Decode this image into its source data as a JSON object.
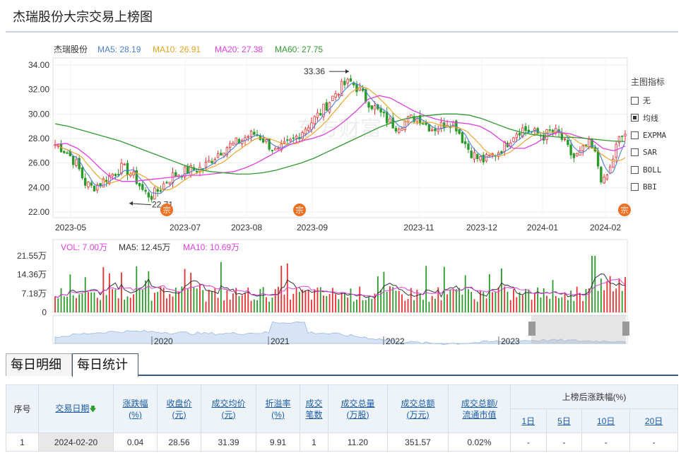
{
  "page": {
    "title": "杰瑞股份大宗交易上榜图"
  },
  "legend": {
    "stock_name": "杰瑞股份",
    "ma5": "MA5: 28.19",
    "ma10": "MA10: 26.91",
    "ma20": "MA20: 27.38",
    "ma60": "MA60: 27.75"
  },
  "volume_legend": {
    "vol": "VOL: 7.00万",
    "ma5": "MA5: 12.45万",
    "ma10": "MA10: 10.69万"
  },
  "colors": {
    "up": "#e83030",
    "down": "#2a9a2a",
    "ma5": "#4b7fd6",
    "ma10": "#e8a020",
    "ma20": "#e040e0",
    "ma60": "#2f9a2f",
    "vol_ma5": "#333333",
    "vol_ma10": "#e040e0",
    "marker": "#f07020"
  },
  "indicator_panel": {
    "title": "主图指标",
    "items": [
      {
        "label": "无",
        "checked": false
      },
      {
        "label": "均线",
        "checked": true
      },
      {
        "label": "EXPMA",
        "checked": false
      },
      {
        "label": "SAR",
        "checked": false
      },
      {
        "label": "BOLL",
        "checked": false
      },
      {
        "label": "BBI",
        "checked": false
      }
    ]
  },
  "chart_data": [
    {
      "type": "candlestick",
      "ylim": [
        22,
        34
      ],
      "y_ticks": [
        "34.00",
        "32.00",
        "30.00",
        "28.00",
        "26.00",
        "24.00",
        "22.00"
      ],
      "x_ticks": [
        "2023-05",
        "2023-07",
        "2023-08",
        "2023-09",
        "2023-11",
        "2023-12",
        "2024-01",
        "2024-02"
      ],
      "annotations": {
        "high": "33.36",
        "low": "22.71"
      },
      "block_trade_marker": "宗",
      "close_path": [
        27.5,
        27.2,
        26.6,
        25.8,
        24.4,
        24.0,
        24.3,
        24.8,
        25.2,
        25.6,
        25.3,
        24.6,
        23.6,
        23.3,
        23.8,
        24.5,
        25.0,
        25.2,
        25.4,
        25.5,
        25.6,
        26.2,
        26.8,
        27.3,
        27.5,
        27.8,
        28.2,
        28.4,
        28.0,
        27.4,
        26.8,
        27.4,
        27.8,
        28.4,
        29.0,
        29.6,
        30.2,
        31.0,
        31.8,
        32.4,
        32.6,
        32.0,
        31.2,
        30.6,
        30.0,
        29.4,
        29.0,
        29.3,
        29.6,
        29.8,
        29.2,
        28.8,
        29.0,
        29.4,
        29.2,
        28.0,
        27.0,
        26.4,
        26.2,
        26.6,
        27.0,
        27.6,
        28.4,
        28.8,
        28.6,
        28.4,
        28.2,
        28.6,
        28.4,
        27.4,
        26.4,
        26.8,
        27.6,
        26.6,
        24.2,
        25.6,
        27.8,
        28.4
      ],
      "ma60_path": [
        29.2,
        29.0,
        28.7,
        28.4,
        28.1,
        27.8,
        27.4,
        27.0,
        26.6,
        26.2,
        25.8,
        25.5,
        25.3,
        25.2,
        25.1,
        25.1,
        25.2,
        25.4,
        25.7,
        26.0,
        26.4,
        26.9,
        27.4,
        27.9,
        28.4,
        28.9,
        29.3,
        29.6,
        29.8,
        29.9,
        30.0,
        30.0,
        29.9,
        29.6,
        29.2,
        28.8,
        28.5,
        28.3,
        28.2,
        28.1,
        28.1,
        28.0,
        27.9,
        27.8,
        27.75
      ],
      "ma20_path": [
        27.5,
        27.6,
        27.2,
        26.5,
        25.6,
        24.8,
        24.5,
        24.5,
        24.6,
        24.7,
        24.8,
        24.9,
        25.0,
        25.0,
        25.1,
        25.2,
        25.3,
        25.6,
        26.0,
        26.5,
        27.0,
        27.5,
        27.8,
        28.0,
        28.3,
        28.8,
        29.5,
        30.3,
        31.2,
        31.5,
        31.3,
        30.8,
        30.3,
        29.9,
        29.6,
        29.4,
        29.3,
        29.2,
        29.0,
        28.5,
        27.8,
        27.2,
        27.2,
        27.6,
        28.2,
        28.5,
        28.4,
        28.1,
        27.9,
        27.2,
        27.0,
        27.38
      ]
    },
    {
      "type": "bar",
      "title": "volume",
      "ylim": [
        0,
        21.55
      ],
      "y_ticks": [
        "21.55万",
        "14.36万",
        "7.18万",
        "0"
      ]
    },
    {
      "type": "area",
      "title": "history-navigator",
      "x_ticks": [
        "2020",
        "2021",
        "2022",
        "2023"
      ]
    }
  ],
  "tabs": [
    {
      "label": "每日明细",
      "active": false
    },
    {
      "label": "每日统计",
      "active": true
    }
  ],
  "table": {
    "headers": {
      "seq": "序号",
      "date": "交易日期",
      "change_l1": "涨跌幅",
      "change_l2": "(%)",
      "close_l1": "收盘价",
      "close_l2": "(元)",
      "avg_l1": "成交均价",
      "avg_l2": "(元)",
      "premium_l1": "折溢率",
      "premium_l2": "(%)",
      "count_l1": "成交",
      "count_l2": "笔数",
      "volume_l1": "成交总量",
      "volume_l2": "(万股)",
      "amount_l1": "成交总额",
      "amount_l2": "(万元)",
      "ratio_l1": "成交总额/",
      "ratio_l2": "流通市值",
      "after_group": "上榜后涨跌幅(%)",
      "d1": "1日",
      "d5": "5日",
      "d10": "10日",
      "d20": "20日"
    },
    "rows": [
      {
        "seq": "1",
        "date": "2024-02-20",
        "change": "0.04",
        "close": "28.56",
        "avg": "31.39",
        "premium": "9.91",
        "count": "1",
        "volume": "11.20",
        "amount": "351.57",
        "ratio": "0.02%",
        "d1": "-",
        "d5": "-",
        "d10": "-",
        "d20": "-"
      }
    ]
  }
}
